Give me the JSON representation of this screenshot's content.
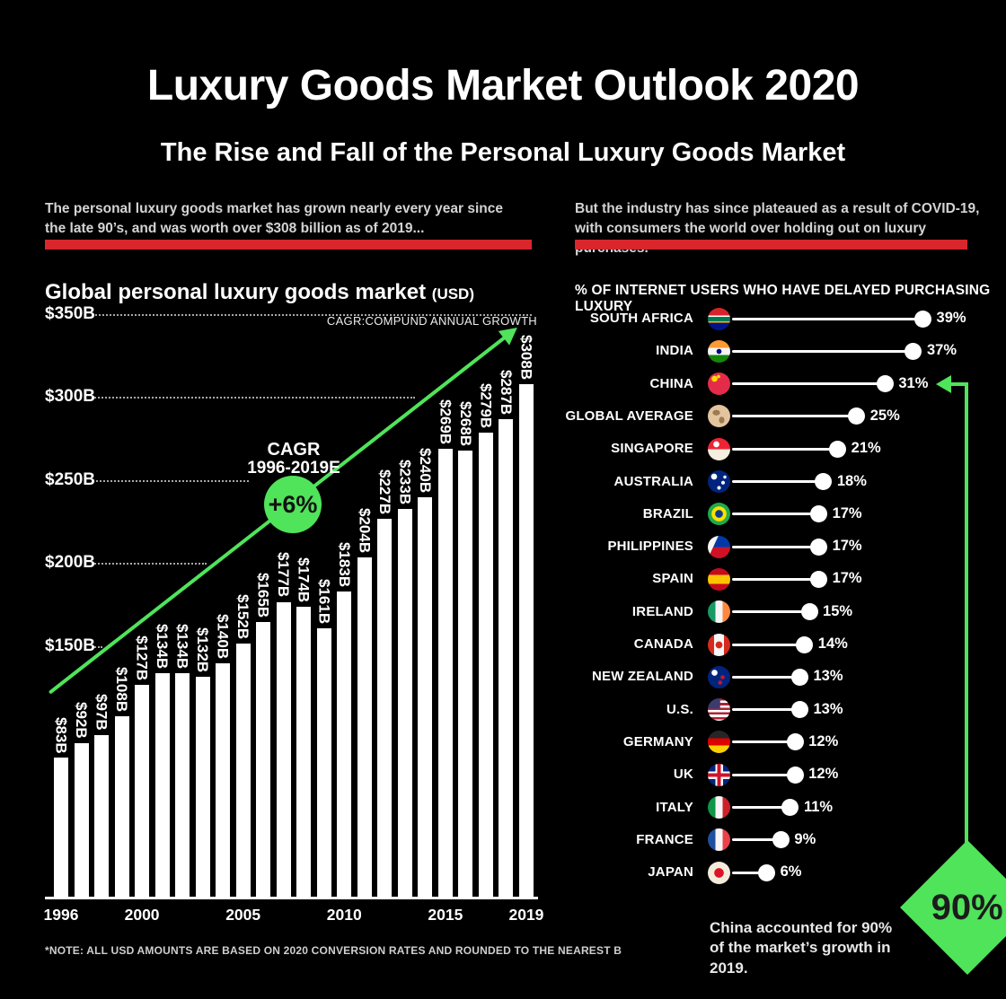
{
  "header": {
    "title": "Luxury Goods Market Outlook 2020",
    "subtitle": "The Rise and Fall of the Personal Luxury Goods Market"
  },
  "left": {
    "intro": "The personal luxury goods market has grown nearly every year since the late 90’s, and was worth over $308 billion as of 2019...",
    "heading": "Global personal luxury goods market",
    "heading_unit": "(USD)"
  },
  "right": {
    "intro": "But the industry has since plateaued as a result of COVID-19, with consumers the world over holding out on luxury purchases."
  },
  "colors": {
    "background": "#000000",
    "accent_red": "#d8262c",
    "accent_green": "#4fe45a",
    "bar_fill": "#ffffff",
    "text": "#ffffff"
  },
  "chart_data": [
    {
      "type": "bar",
      "title": "Global personal luxury goods market (USD)",
      "x": [
        1996,
        1997,
        1998,
        1999,
        2000,
        2001,
        2002,
        2003,
        2004,
        2005,
        2006,
        2007,
        2008,
        2009,
        2010,
        2011,
        2012,
        2013,
        2014,
        2015,
        2016,
        2017,
        2018,
        2019
      ],
      "values": [
        83,
        92,
        97,
        108,
        127,
        134,
        134,
        132,
        140,
        152,
        165,
        177,
        174,
        161,
        183,
        204,
        227,
        233,
        240,
        269,
        268,
        279,
        287,
        308
      ],
      "bar_labels": [
        "$83B",
        "$92B",
        "$97B",
        "$108B",
        "$127B",
        "$134B",
        "$134B",
        "$132B",
        "$140B",
        "$152B",
        "$165B",
        "$177B",
        "$174B",
        "$161B",
        "$183B",
        "$204B",
        "$227B",
        "$233B",
        "$240B",
        "$269B",
        "$268B",
        "$279B",
        "$287B",
        "$308B"
      ],
      "unit": "USD billions",
      "ylim": [
        0,
        350
      ],
      "grid": "dotted horizontal",
      "legend": "none",
      "yticks": [
        {
          "label": "$350B",
          "value": 350
        },
        {
          "label": "$300B",
          "value": 300
        },
        {
          "label": "$250B",
          "value": 250
        },
        {
          "label": "$200B",
          "value": 200
        },
        {
          "label": "$150B",
          "value": 150
        }
      ],
      "xticks": [
        1996,
        2000,
        2005,
        2010,
        2015,
        2019
      ],
      "annotations": {
        "trend_note": "CAGR:COMPUND ANNUAL GROWTH",
        "cagr_title": "CAGR",
        "cagr_range": "1996-2019E",
        "cagr_value": "+6%"
      },
      "footnote": "*NOTE: ALL USD AMOUNTS ARE BASED ON 2020 CONVERSION RATES AND ROUNDED TO THE NEAREST B"
    },
    {
      "type": "bar",
      "subtype": "lollipop",
      "title": "% OF INTERNET USERS WHO HAVE DELAYED PURCHASING LUXURY",
      "categories": [
        "SOUTH AFRICA",
        "INDIA",
        "CHINA",
        "GLOBAL AVERAGE",
        "SINGAPORE",
        "AUSTRALIA",
        "BRAZIL",
        "PHILIPPINES",
        "SPAIN",
        "IRELAND",
        "CANADA",
        "NEW ZEALAND",
        "U.S.",
        "GERMANY",
        "UK",
        "ITALY",
        "FRANCE",
        "JAPAN"
      ],
      "values": [
        39,
        37,
        31,
        25,
        21,
        18,
        17,
        17,
        17,
        15,
        14,
        13,
        13,
        12,
        12,
        11,
        9,
        6
      ],
      "value_labels": [
        "39%",
        "37%",
        "31%",
        "25%",
        "21%",
        "18%",
        "17%",
        "17%",
        "17%",
        "15%",
        "14%",
        "13%",
        "13%",
        "12%",
        "12%",
        "11%",
        "9%",
        "6%"
      ],
      "flags": [
        "south-africa",
        "india",
        "china",
        "globe",
        "singapore",
        "australia",
        "brazil",
        "philippines",
        "spain",
        "ireland",
        "canada",
        "new-zealand",
        "us",
        "germany",
        "uk",
        "italy",
        "france",
        "japan"
      ],
      "xlim": [
        0,
        42
      ],
      "callout": {
        "value": "90%",
        "caption": "China accounted for 90% of the market’s growth in 2019.",
        "target": "CHINA"
      }
    }
  ]
}
